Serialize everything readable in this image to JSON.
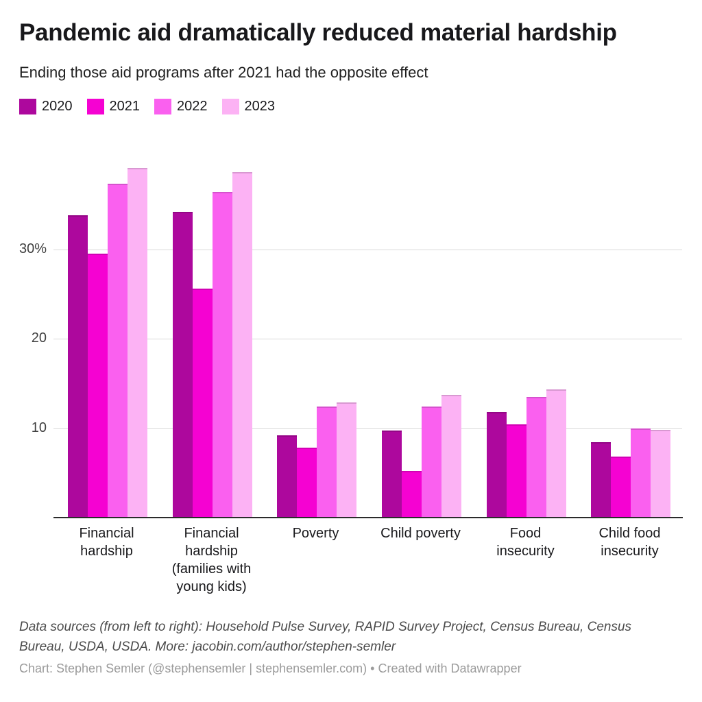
{
  "header": {
    "title": "Pandemic aid dramatically reduced material hardship",
    "subtitle": "Ending those aid programs after 2021 had the opposite effect"
  },
  "legend": {
    "position": "top",
    "items": [
      {
        "label": "2020",
        "color": "#ad089d"
      },
      {
        "label": "2021",
        "color": "#f502d2"
      },
      {
        "label": "2022",
        "color": "#fa60ef"
      },
      {
        "label": "2023",
        "color": "#fcb2f4"
      }
    ]
  },
  "chart_data": {
    "type": "bar",
    "title": "Pandemic aid dramatically reduced material hardship",
    "subtitle": "Ending those aid programs after 2021 had the opposite effect",
    "categories": [
      "Financial hardship",
      "Financial hardship (families with young kids)",
      "Poverty",
      "Child poverty",
      "Food insecurity",
      "Child food insecurity"
    ],
    "category_label_lines": [
      [
        "Financial",
        "hardship"
      ],
      [
        "Financial",
        "hardship",
        "(families with",
        "young kids)"
      ],
      [
        "Poverty"
      ],
      [
        "Child poverty"
      ],
      [
        "Food",
        "insecurity"
      ],
      [
        "Child food",
        "insecurity"
      ]
    ],
    "series": [
      {
        "name": "2020",
        "color": "#ad089d",
        "values": [
          33.8,
          34.2,
          9.2,
          9.7,
          11.8,
          8.4
        ]
      },
      {
        "name": "2021",
        "color": "#f502d2",
        "values": [
          29.5,
          25.6,
          7.8,
          5.2,
          10.4,
          6.8
        ]
      },
      {
        "name": "2022",
        "color": "#fa60ef",
        "values": [
          37.3,
          36.4,
          12.4,
          12.4,
          13.5,
          10.0
        ]
      },
      {
        "name": "2023",
        "color": "#fcb2f4",
        "values": [
          39.1,
          38.6,
          12.9,
          13.7,
          14.3,
          9.8
        ]
      }
    ],
    "unit": "%",
    "xlabel": "",
    "ylabel": "",
    "ylim": [
      0,
      40.5
    ],
    "y_ticks": [
      {
        "value": 10,
        "label": "10"
      },
      {
        "value": 20,
        "label": "20"
      },
      {
        "value": 30,
        "label": "30%"
      }
    ],
    "grid": true,
    "legend_position": "top"
  },
  "footer": {
    "sources": "Data sources (from left to right): Household Pulse Survey, RAPID Survey Project, Census Bureau, Census Bureau, USDA, USDA. More: jacobin.com/author/stephen-semler",
    "attribution": "Chart: Stephen Semler (@stephensemler | stephensemler.com) • Created with Datawrapper"
  }
}
